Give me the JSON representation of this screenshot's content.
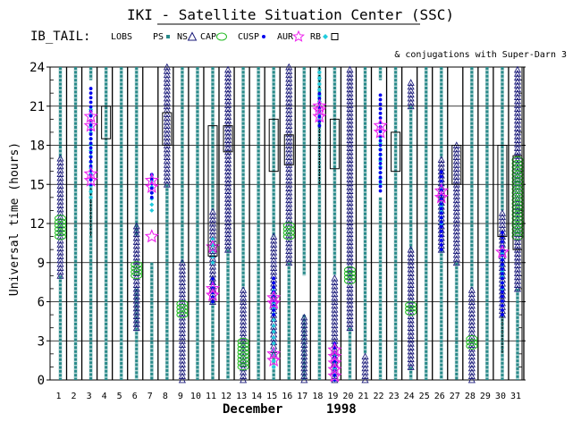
{
  "chart_data": {
    "type": "scatter",
    "title": "IKI - Satellite Situation Center (SSC)",
    "region_label": "IB_TAIL:",
    "legend": [
      {
        "label": "LOBS",
        "symbol": "none",
        "color": "#000000"
      },
      {
        "label": "PS",
        "symbol": "small-square",
        "color": "#2a8a8a"
      },
      {
        "label": "NS",
        "symbol": "triangle",
        "color": "#1a1a7a"
      },
      {
        "label": "CAP",
        "symbol": "ellipse",
        "color": "#22bb22"
      },
      {
        "label": "CUSP",
        "symbol": "dot",
        "color": "#0000ee"
      },
      {
        "label": "AUR",
        "symbol": "star",
        "color": "#ee22ee"
      },
      {
        "label": "RB",
        "symbol": "diamond",
        "color": "#22ccdd"
      },
      {
        "label": "",
        "symbol": "box",
        "color": "#000000"
      }
    ],
    "note": "& conjugations with Super-Darn 3",
    "ylabel": "Universal time (hours)",
    "xlabel_month": "December",
    "xlabel_year": "1998",
    "ylim": [
      0,
      24
    ],
    "yticks": [
      0,
      3,
      6,
      9,
      12,
      15,
      18,
      21,
      24
    ],
    "x_days": [
      1,
      2,
      3,
      4,
      5,
      6,
      7,
      8,
      9,
      10,
      11,
      12,
      13,
      14,
      15,
      16,
      17,
      18,
      19,
      20,
      21,
      22,
      23,
      24,
      25,
      26,
      27,
      28,
      29,
      30,
      31
    ],
    "grid": true,
    "colors": {
      "ps": "#2a8a8a",
      "ns": "#1a1a7a",
      "cap": "#22bb22",
      "cusp": "#0000ee",
      "aur": "#ee22ee",
      "rb": "#22ccdd",
      "lobs": "#000000",
      "sd": "#000000"
    },
    "ps_intervals": [
      {
        "day": 1,
        "ranges": [
          [
            0,
            8
          ],
          [
            17,
            24
          ]
        ]
      },
      {
        "day": 2,
        "ranges": [
          [
            0,
            24
          ]
        ]
      },
      {
        "day": 3,
        "ranges": [
          [
            0,
            15
          ],
          [
            23,
            24
          ]
        ]
      },
      {
        "day": 4,
        "ranges": [
          [
            0,
            24
          ]
        ]
      },
      {
        "day": 5,
        "ranges": [
          [
            0,
            24
          ]
        ]
      },
      {
        "day": 6,
        "ranges": [
          [
            0,
            7
          ],
          [
            11,
            24
          ]
        ]
      },
      {
        "day": 7,
        "ranges": [
          [
            0,
            9
          ]
        ]
      },
      {
        "day": 8,
        "ranges": [
          [
            0,
            15
          ]
        ]
      },
      {
        "day": 9,
        "ranges": [
          [
            9,
            24
          ]
        ]
      },
      {
        "day": 10,
        "ranges": [
          [
            0,
            24
          ]
        ]
      },
      {
        "day": 11,
        "ranges": [
          [
            0,
            6
          ],
          [
            13,
            24
          ]
        ]
      },
      {
        "day": 12,
        "ranges": [
          [
            0,
            10
          ]
        ]
      },
      {
        "day": 13,
        "ranges": [
          [
            7,
            24
          ]
        ]
      },
      {
        "day": 14,
        "ranges": [
          [
            0,
            24
          ]
        ]
      },
      {
        "day": 15,
        "ranges": [
          [
            0,
            2
          ],
          [
            11,
            24
          ]
        ]
      },
      {
        "day": 16,
        "ranges": [
          [
            0,
            9
          ]
        ]
      },
      {
        "day": 17,
        "ranges": [
          [
            0,
            5
          ],
          [
            8,
            24
          ]
        ]
      },
      {
        "day": 18,
        "ranges": [
          [
            0,
            24
          ]
        ]
      },
      {
        "day": 19,
        "ranges": [
          [
            8,
            24
          ]
        ]
      },
      {
        "day": 20,
        "ranges": [
          [
            0,
            4
          ]
        ]
      },
      {
        "day": 21,
        "ranges": [
          [
            2,
            24
          ]
        ]
      },
      {
        "day": 22,
        "ranges": [
          [
            0,
            14
          ],
          [
            23,
            24
          ]
        ]
      },
      {
        "day": 23,
        "ranges": [
          [
            0,
            24
          ]
        ]
      },
      {
        "day": 24,
        "ranges": [
          [
            0,
            1
          ],
          [
            10,
            21
          ]
        ]
      },
      {
        "day": 25,
        "ranges": [
          [
            0,
            24
          ]
        ]
      },
      {
        "day": 26,
        "ranges": [
          [
            0,
            10
          ],
          [
            17,
            24
          ]
        ]
      },
      {
        "day": 27,
        "ranges": [
          [
            0,
            9
          ]
        ]
      },
      {
        "day": 28,
        "ranges": [
          [
            7,
            24
          ]
        ]
      },
      {
        "day": 29,
        "ranges": [
          [
            0,
            24
          ]
        ]
      },
      {
        "day": 30,
        "ranges": [
          [
            0,
            5
          ],
          [
            13,
            24
          ]
        ]
      },
      {
        "day": 31,
        "ranges": [
          [
            0,
            7
          ]
        ]
      }
    ],
    "ns_intervals": [
      {
        "day": 1,
        "ranges": [
          [
            8,
            17
          ]
        ]
      },
      {
        "day": 6,
        "ranges": [
          [
            4,
            12
          ]
        ]
      },
      {
        "day": 8,
        "ranges": [
          [
            15,
            24
          ]
        ]
      },
      {
        "day": 9,
        "ranges": [
          [
            0,
            9
          ]
        ]
      },
      {
        "day": 11,
        "ranges": [
          [
            6,
            13
          ]
        ]
      },
      {
        "day": 12,
        "ranges": [
          [
            10,
            24
          ]
        ]
      },
      {
        "day": 13,
        "ranges": [
          [
            0,
            7
          ]
        ]
      },
      {
        "day": 15,
        "ranges": [
          [
            2,
            11
          ]
        ]
      },
      {
        "day": 16,
        "ranges": [
          [
            9,
            24
          ]
        ]
      },
      {
        "day": 17,
        "ranges": [
          [
            0,
            5
          ]
        ]
      },
      {
        "day": 19,
        "ranges": [
          [
            0,
            8
          ]
        ]
      },
      {
        "day": 20,
        "ranges": [
          [
            4,
            24
          ]
        ]
      },
      {
        "day": 21,
        "ranges": [
          [
            0,
            2
          ]
        ]
      },
      {
        "day": 24,
        "ranges": [
          [
            1,
            10
          ],
          [
            21,
            23
          ]
        ]
      },
      {
        "day": 26,
        "ranges": [
          [
            10,
            17
          ]
        ]
      },
      {
        "day": 27,
        "ranges": [
          [
            9,
            18
          ]
        ]
      },
      {
        "day": 28,
        "ranges": [
          [
            0,
            7
          ]
        ]
      },
      {
        "day": 30,
        "ranges": [
          [
            5,
            13
          ]
        ]
      },
      {
        "day": 31,
        "ranges": [
          [
            7,
            24
          ]
        ]
      }
    ],
    "cap_intervals": [
      {
        "day": 1,
        "ranges": [
          [
            11,
            12.5
          ]
        ]
      },
      {
        "day": 6,
        "ranges": [
          [
            8,
            9
          ]
        ]
      },
      {
        "day": 9,
        "ranges": [
          [
            5,
            6
          ]
        ]
      },
      {
        "day": 13,
        "ranges": [
          [
            1,
            3
          ]
        ]
      },
      {
        "day": 16,
        "ranges": [
          [
            11,
            12
          ]
        ]
      },
      {
        "day": 20,
        "ranges": [
          [
            7.6,
            8.6
          ]
        ]
      },
      {
        "day": 24,
        "ranges": [
          [
            5.2,
            6
          ]
        ]
      },
      {
        "day": 28,
        "ranges": [
          [
            2.6,
            3.4
          ]
        ]
      },
      {
        "day": 31,
        "ranges": [
          [
            11,
            17
          ]
        ]
      }
    ],
    "cusp_intervals": [
      {
        "day": 3,
        "ranges": [
          [
            15,
            22.5
          ]
        ]
      },
      {
        "day": 7,
        "ranges": [
          [
            14,
            16
          ]
        ]
      },
      {
        "day": 11,
        "ranges": [
          [
            6,
            8
          ]
        ]
      },
      {
        "day": 15,
        "ranges": [
          [
            5,
            8
          ]
        ]
      },
      {
        "day": 18,
        "ranges": [
          [
            19.5,
            22
          ]
        ]
      },
      {
        "day": 19,
        "ranges": [
          [
            0,
            3
          ]
        ]
      },
      {
        "day": 22,
        "ranges": [
          [
            14.5,
            22
          ]
        ]
      },
      {
        "day": 26,
        "ranges": [
          [
            10,
            16
          ]
        ]
      },
      {
        "day": 30,
        "ranges": [
          [
            5,
            11.5
          ]
        ]
      }
    ],
    "rb_intervals": [
      {
        "day": 3,
        "ranges": [
          [
            14,
            21
          ]
        ]
      },
      {
        "day": 7,
        "ranges": [
          [
            13,
            16
          ]
        ]
      },
      {
        "day": 11,
        "ranges": [
          [
            9,
            11
          ]
        ]
      },
      {
        "day": 15,
        "ranges": [
          [
            1,
            7
          ]
        ]
      },
      {
        "day": 18,
        "ranges": [
          [
            20,
            24
          ]
        ]
      },
      {
        "day": 19,
        "ranges": [
          [
            0,
            2
          ]
        ]
      },
      {
        "day": 22,
        "ranges": [
          [
            15,
            19
          ]
        ]
      },
      {
        "day": 26,
        "ranges": [
          [
            12,
            15
          ]
        ]
      },
      {
        "day": 30,
        "ranges": [
          [
            7,
            10
          ]
        ]
      }
    ],
    "aur_points": [
      {
        "day": 3,
        "times": [
          19.5,
          20.2,
          15.3,
          15.8
        ]
      },
      {
        "day": 7,
        "times": [
          14.8,
          15.3,
          11
        ]
      },
      {
        "day": 11,
        "times": [
          6.5,
          7,
          10.2
        ]
      },
      {
        "day": 15,
        "times": [
          1.5,
          2,
          5.9,
          6.3
        ]
      },
      {
        "day": 18,
        "times": [
          20.2,
          20.7,
          21
        ]
      },
      {
        "day": 19,
        "times": [
          0.3,
          0.8,
          1.3,
          1.8,
          2.3
        ]
      },
      {
        "day": 22,
        "times": [
          19,
          19.5
        ]
      },
      {
        "day": 26,
        "times": [
          14,
          14.5
        ]
      },
      {
        "day": 30,
        "times": [
          9.8
        ]
      }
    ],
    "lobs_intervals": [
      {
        "day": 3,
        "ranges": [
          [
            11,
            18
          ]
        ]
      },
      {
        "day": 18,
        "ranges": [
          [
            15,
            24
          ]
        ]
      },
      {
        "day": 30,
        "ranges": [
          [
            2,
            9
          ]
        ]
      }
    ],
    "sd_boxes": [
      {
        "day": 4,
        "ranges": [
          [
            18.5,
            21
          ]
        ]
      },
      {
        "day": 8,
        "ranges": [
          [
            18,
            20.5
          ]
        ]
      },
      {
        "day": 11,
        "ranges": [
          [
            9.5,
            19.5
          ]
        ]
      },
      {
        "day": 12,
        "ranges": [
          [
            17.5,
            19.5
          ]
        ]
      },
      {
        "day": 15,
        "ranges": [
          [
            16,
            20
          ]
        ]
      },
      {
        "day": 16,
        "ranges": [
          [
            16.5,
            18.8
          ]
        ]
      },
      {
        "day": 19,
        "ranges": [
          [
            16.2,
            20
          ]
        ]
      },
      {
        "day": 23,
        "ranges": [
          [
            16,
            19
          ]
        ]
      },
      {
        "day": 27,
        "ranges": [
          [
            15,
            18
          ]
        ]
      },
      {
        "day": 30,
        "ranges": [
          [
            11,
            18
          ]
        ]
      },
      {
        "day": 31,
        "ranges": [
          [
            10,
            17.2
          ]
        ]
      }
    ]
  }
}
